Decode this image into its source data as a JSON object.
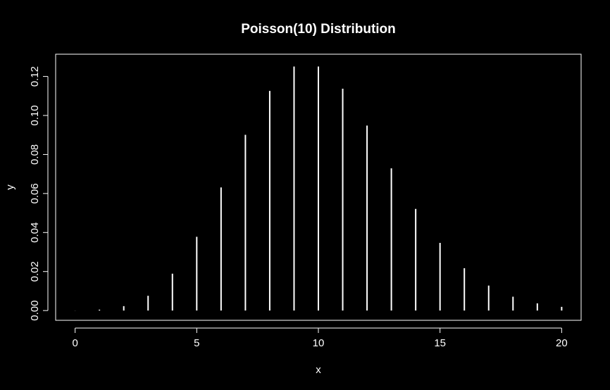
{
  "chart_data": {
    "type": "bar",
    "title": "Poisson(10) Distribution",
    "xlabel": "x",
    "ylabel": "y",
    "x": [
      0,
      1,
      2,
      3,
      4,
      5,
      6,
      7,
      8,
      9,
      10,
      11,
      12,
      13,
      14,
      15,
      16,
      17,
      18,
      19,
      20
    ],
    "values": [
      4.54e-05,
      0.000454,
      0.00227,
      0.00757,
      0.0189,
      0.0378,
      0.0631,
      0.0901,
      0.1126,
      0.1251,
      0.1251,
      0.1137,
      0.0948,
      0.0729,
      0.0521,
      0.0347,
      0.0217,
      0.0128,
      0.0071,
      0.0037,
      0.0019
    ],
    "xlim": [
      -0.8,
      20.8
    ],
    "ylim": [
      -0.005,
      0.1314
    ],
    "xticks": [
      0,
      5,
      10,
      15,
      20
    ],
    "xtick_labels": [
      "0",
      "5",
      "10",
      "15",
      "20"
    ],
    "yticks": [
      0,
      0.02,
      0.04,
      0.06,
      0.08,
      0.1,
      0.12
    ],
    "ytick_labels": [
      "0.00",
      "0.02",
      "0.04",
      "0.06",
      "0.08",
      "0.10",
      "0.12"
    ],
    "grid": false,
    "colors": {
      "background": "#000000",
      "foreground": "#ffffff"
    }
  }
}
